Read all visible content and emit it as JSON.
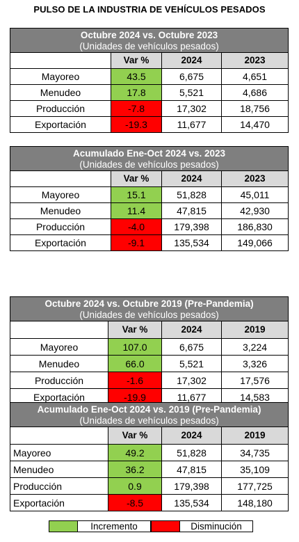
{
  "title": "PULSO DE LA INDUSTRIA DE VEHÍCULOS PESADOS",
  "tables": [
    {
      "title": "Octubre 2024 vs. Octubre 2023",
      "subtitle": "(Unidades de vehículos pesados)",
      "col_var": "Var %",
      "col_a": "2024",
      "col_b": "2023",
      "rows": [
        {
          "label": "Mayoreo",
          "var": "43.5",
          "a": "6,675",
          "b": "4,651",
          "trend": "up"
        },
        {
          "label": "Menudeo",
          "var": "17.8",
          "a": "5,521",
          "b": "4,686",
          "trend": "up"
        },
        {
          "label": "Producción",
          "var": "-7.8",
          "a": "17,302",
          "b": "18,756",
          "trend": "down"
        },
        {
          "label": "Exportación",
          "var": "-19.3",
          "a": "11,677",
          "b": "14,470",
          "trend": "down"
        }
      ]
    },
    {
      "title": "Acumulado Ene-Oct 2024 vs. 2023",
      "subtitle": "(Unidades de vehículos pesados)",
      "col_var": "Var %",
      "col_a": "2024",
      "col_b": "2023",
      "rows": [
        {
          "label": "Mayoreo",
          "var": "15.1",
          "a": "51,828",
          "b": "45,011",
          "trend": "up"
        },
        {
          "label": "Menudeo",
          "var": "11.4",
          "a": "47,815",
          "b": "42,930",
          "trend": "up"
        },
        {
          "label": "Producción",
          "var": "-4.0",
          "a": "179,398",
          "b": "186,830",
          "trend": "down"
        },
        {
          "label": "Exportación",
          "var": "-9.1",
          "a": "135,534",
          "b": "149,066",
          "trend": "down"
        }
      ]
    },
    {
      "title": "Octubre 2024 vs. Octubre 2019 (Pre-Pandemia)",
      "subtitle": "(Unidades de vehículos pesados)",
      "col_var": "Var %",
      "col_a": "2024",
      "col_b": "2019",
      "rows": [
        {
          "label": "Mayoreo",
          "var": "107.0",
          "a": "6,675",
          "b": "3,224",
          "trend": "up"
        },
        {
          "label": "Menudeo",
          "var": "66.0",
          "a": "5,521",
          "b": "3,326",
          "trend": "up"
        },
        {
          "label": "Producción",
          "var": "-1.6",
          "a": "17,302",
          "b": "17,576",
          "trend": "down"
        },
        {
          "label": "Exportación",
          "var": "-19.9",
          "a": "11,677",
          "b": "14,583",
          "trend": "down"
        }
      ]
    },
    {
      "title": "Acumulado Ene-Oct 2024 vs. 2019 (Pre-Pandemia)",
      "subtitle": "(Unidades de vehículos pesados)",
      "col_var": "Var %",
      "col_a": "2024",
      "col_b": "2019",
      "rows": [
        {
          "label": "Mayoreo",
          "var": "49.2",
          "a": "51,828",
          "b": "34,735",
          "trend": "up"
        },
        {
          "label": "Menudeo",
          "var": "36.2",
          "a": "47,815",
          "b": "35,109",
          "trend": "up"
        },
        {
          "label": "Producción",
          "var": "0.9",
          "a": "179,398",
          "b": "177,725",
          "trend": "up"
        },
        {
          "label": "Exportación",
          "var": "-8.5",
          "a": "135,534",
          "b": "148,180",
          "trend": "down"
        }
      ]
    }
  ],
  "legend": {
    "increase": "Incremento",
    "decrease": "Disminución"
  },
  "colors": {
    "increase": "#92d050",
    "decrease": "#ff0000",
    "header": "#7f7f7f",
    "col_header": "#d9d9d9"
  }
}
